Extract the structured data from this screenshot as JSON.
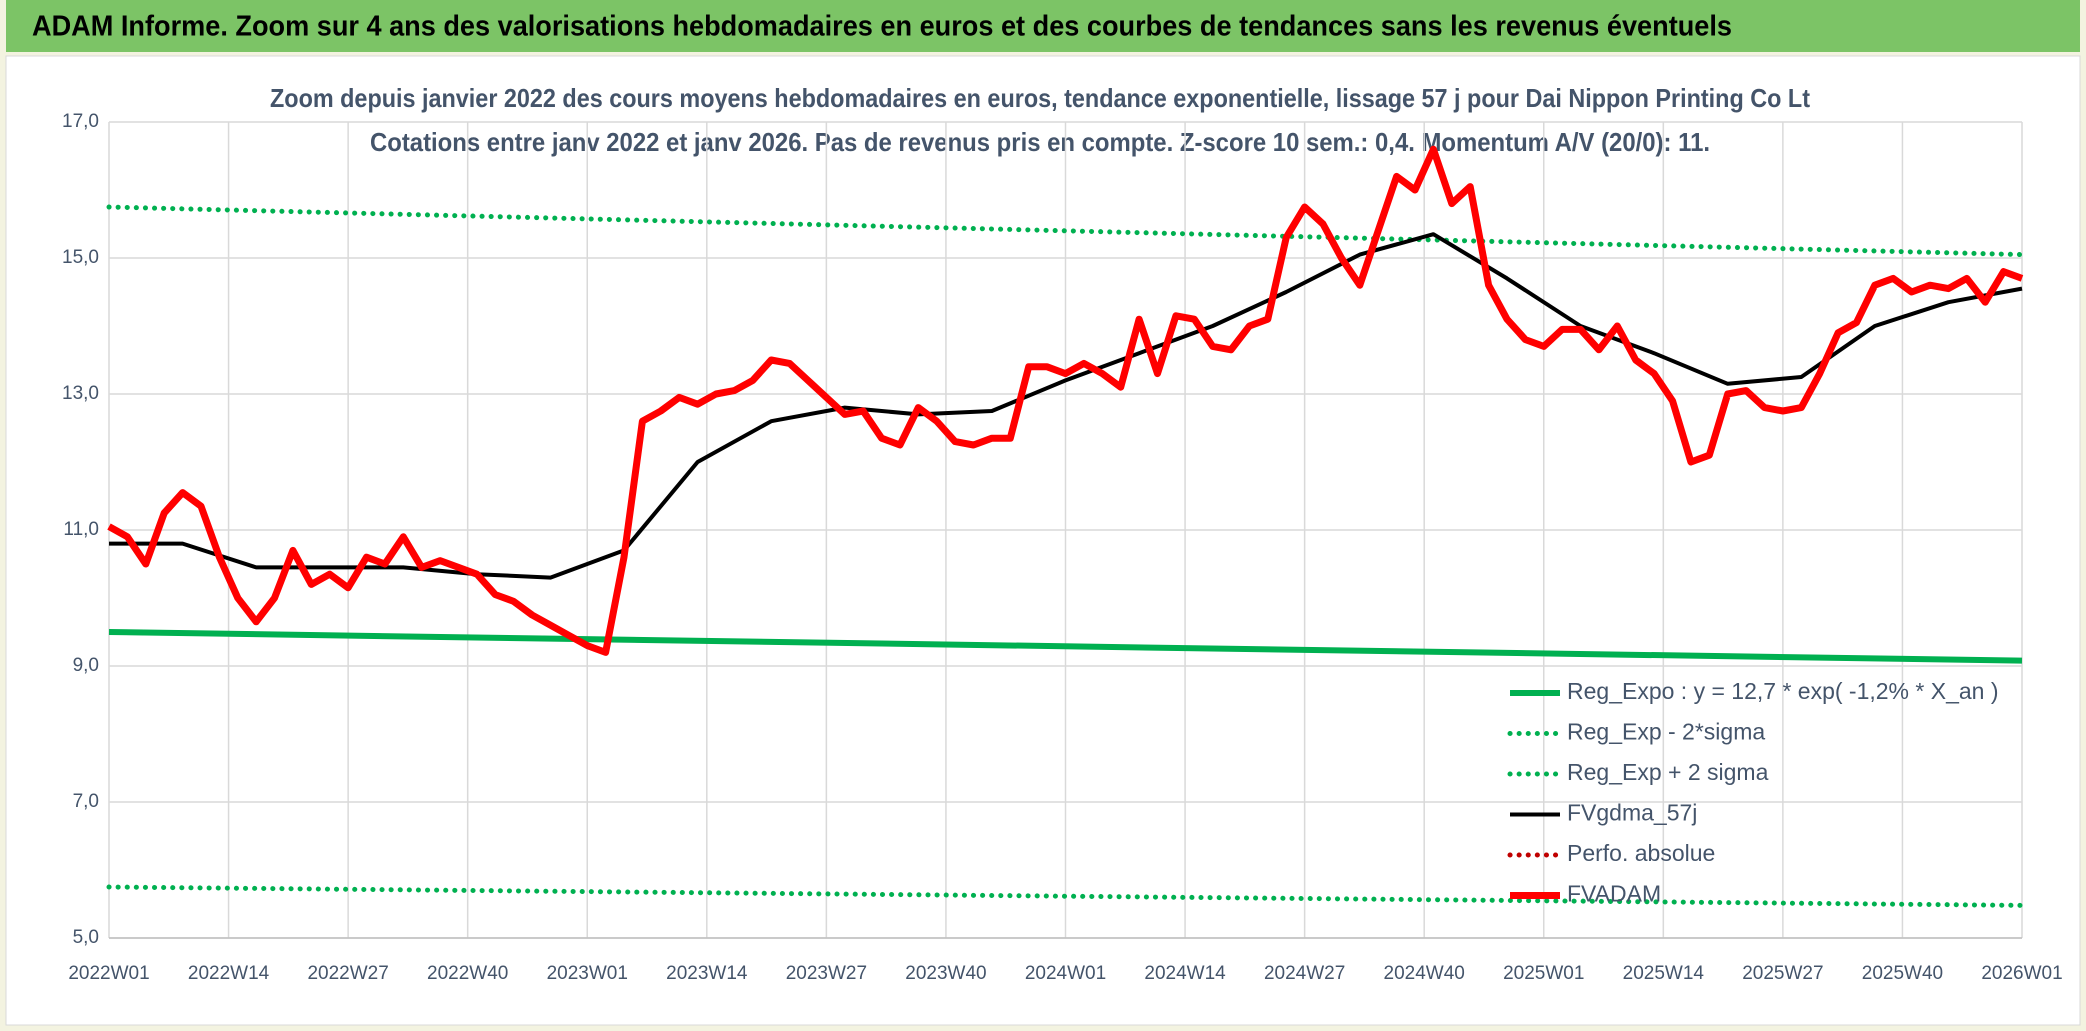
{
  "header": "ADAM Informe. Zoom sur 4 ans des valorisations hebdomadaires en euros et des courbes de tendances sans les revenus éventuels",
  "chart_data": {
    "type": "line",
    "title": "Zoom depuis janvier 2022 des cours moyens hebdomadaires en euros, tendance exponentielle, lissage 57 j pour Dai Nippon Printing Co Lt",
    "subtitle": "Cotations entre janv 2022 et janv 2026. Pas de revenus pris en compte. Z-score 10 sem.: 0,4. Momentum A/V (20/0): 11.",
    "xlim": [
      0,
      208
    ],
    "xticks": [
      {
        "value": 0,
        "label": "2022W01"
      },
      {
        "value": 13,
        "label": "2022W14"
      },
      {
        "value": 26,
        "label": "2022W27"
      },
      {
        "value": 39,
        "label": "2022W40"
      },
      {
        "value": 52,
        "label": "2023W01"
      },
      {
        "value": 65,
        "label": "2023W14"
      },
      {
        "value": 78,
        "label": "2023W27"
      },
      {
        "value": 91,
        "label": "2023W40"
      },
      {
        "value": 104,
        "label": "2024W01"
      },
      {
        "value": 117,
        "label": "2024W14"
      },
      {
        "value": 130,
        "label": "2024W27"
      },
      {
        "value": 143,
        "label": "2024W40"
      },
      {
        "value": 156,
        "label": "2025W01"
      },
      {
        "value": 169,
        "label": "2025W14"
      },
      {
        "value": 182,
        "label": "2025W27"
      },
      {
        "value": 195,
        "label": "2025W40"
      },
      {
        "value": 208,
        "label": "2026W01"
      }
    ],
    "ylim": [
      5,
      17
    ],
    "yticks": [
      {
        "value": 5,
        "label": "5,0"
      },
      {
        "value": 7,
        "label": "7,0"
      },
      {
        "value": 9,
        "label": "9,0"
      },
      {
        "value": 11,
        "label": "11,0"
      },
      {
        "value": 13,
        "label": "13,0"
      },
      {
        "value": 15,
        "label": "15,0"
      },
      {
        "value": 17,
        "label": "17,0"
      }
    ],
    "grid": true,
    "legend": "lower right",
    "series": [
      {
        "name": "Reg_Expo : y = 12,7 * exp( -1,2% *  X_an )",
        "color": "#00b050",
        "style": "solid",
        "x": [
          0,
          208
        ],
        "values": [
          9.5,
          9.08
        ]
      },
      {
        "name": "Reg_Exp - 2*sigma",
        "color": "#00b050",
        "style": "dotted",
        "x": [
          0,
          208
        ],
        "values": [
          5.75,
          5.48
        ]
      },
      {
        "name": "Reg_Exp + 2 sigma",
        "color": "#00b050",
        "style": "dotted",
        "x": [
          0,
          208
        ],
        "values": [
          15.75,
          15.05
        ]
      },
      {
        "name": "FVgdma_57j",
        "color": "#000000",
        "style": "solid",
        "x": [
          0,
          8,
          16,
          24,
          32,
          40,
          48,
          56,
          64,
          72,
          80,
          88,
          96,
          104,
          112,
          120,
          128,
          136,
          144,
          152,
          160,
          168,
          176,
          184,
          192,
          200,
          208
        ],
        "values": [
          10.8,
          10.8,
          10.45,
          10.45,
          10.45,
          10.35,
          10.3,
          10.7,
          12.0,
          12.6,
          12.8,
          12.7,
          12.75,
          13.2,
          13.6,
          14.0,
          14.5,
          15.05,
          15.35,
          14.7,
          14.0,
          13.6,
          13.15,
          13.25,
          14.0,
          14.35,
          14.55
        ]
      },
      {
        "name": "Perfo. absolue",
        "color": "#c00000",
        "style": "dotted",
        "x": [],
        "values": []
      },
      {
        "name": "FVADAM",
        "color": "#ff0000",
        "style": "thick",
        "x": [
          0,
          2,
          4,
          6,
          8,
          10,
          12,
          14,
          16,
          18,
          20,
          22,
          24,
          26,
          28,
          30,
          32,
          34,
          36,
          38,
          40,
          42,
          44,
          46,
          48,
          50,
          52,
          54,
          56,
          58,
          60,
          62,
          64,
          66,
          68,
          70,
          72,
          74,
          76,
          78,
          80,
          82,
          84,
          86,
          88,
          90,
          92,
          94,
          96,
          98,
          100,
          102,
          104,
          106,
          108,
          110,
          112,
          114,
          116,
          118,
          120,
          122,
          124,
          126,
          128,
          130,
          132,
          134,
          136,
          138,
          140,
          142,
          144,
          146,
          148,
          150,
          152,
          154,
          156,
          158,
          160,
          162,
          164,
          166,
          168,
          170,
          172,
          174,
          176,
          178,
          180,
          182,
          184,
          186,
          188,
          190,
          192,
          194,
          196,
          198,
          200,
          202,
          204,
          206,
          208
        ],
        "values": [
          11.05,
          10.9,
          10.5,
          11.25,
          11.55,
          11.35,
          10.6,
          10.0,
          9.65,
          10.0,
          10.7,
          10.2,
          10.35,
          10.15,
          10.6,
          10.5,
          10.9,
          10.45,
          10.55,
          10.45,
          10.35,
          10.05,
          9.95,
          9.75,
          9.6,
          9.45,
          9.3,
          9.2,
          10.6,
          12.6,
          12.75,
          12.95,
          12.85,
          13.0,
          13.05,
          13.2,
          13.5,
          13.45,
          13.2,
          12.95,
          12.7,
          12.75,
          12.35,
          12.25,
          12.8,
          12.6,
          12.3,
          12.25,
          12.35,
          12.35,
          13.4,
          13.4,
          13.3,
          13.45,
          13.3,
          13.1,
          14.1,
          13.3,
          14.15,
          14.1,
          13.7,
          13.65,
          14.0,
          14.1,
          15.3,
          15.75,
          15.5,
          15.0,
          14.6,
          15.4,
          16.2,
          16.0,
          16.6,
          15.8,
          16.05,
          14.6,
          14.1,
          13.8,
          13.7,
          13.95,
          13.95,
          13.65,
          14.0,
          13.5,
          13.3,
          12.9,
          12.0,
          12.1,
          13.0,
          13.05,
          12.8,
          12.75,
          12.8,
          13.3,
          13.9,
          14.05,
          14.6,
          14.7,
          14.5,
          14.6,
          14.55,
          14.7,
          14.35,
          14.8,
          14.7
        ]
      }
    ]
  }
}
